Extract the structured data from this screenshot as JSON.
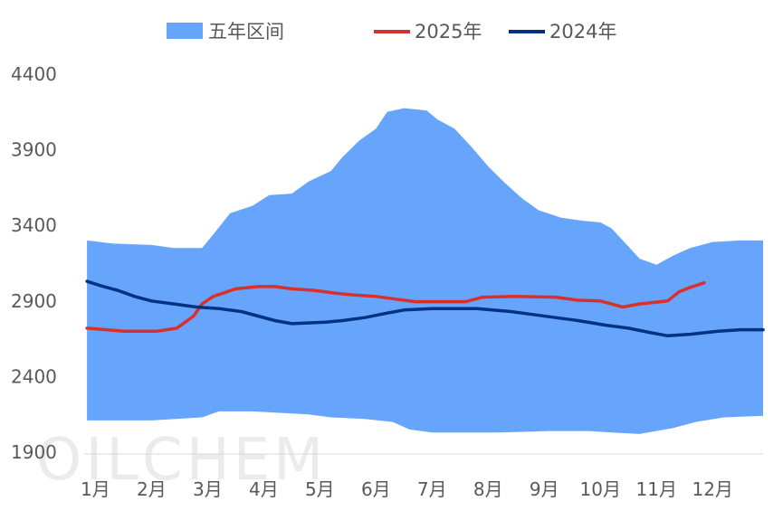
{
  "chart_data": {
    "type": "line",
    "title": "",
    "xlabel": "",
    "ylabel": "",
    "ylim": [
      1900,
      4400
    ],
    "yticks": [
      1900,
      2400,
      2900,
      3400,
      3900,
      4400
    ],
    "months": [
      "1月",
      "2月",
      "3月",
      "4月",
      "5月",
      "6月",
      "7月",
      "8月",
      "9月",
      "10月",
      "11月",
      "12月"
    ],
    "x_range": [
      0.8,
      12.9
    ],
    "legend_position": "top",
    "grid": false,
    "watermark": "OILCHEM",
    "band": {
      "name": "五年区间",
      "color": "#66a5fb",
      "upper": [
        [
          0.85,
          3300
        ],
        [
          1.3,
          3280
        ],
        [
          2.0,
          3270
        ],
        [
          2.4,
          3250
        ],
        [
          2.9,
          3250
        ],
        [
          3.1,
          3340
        ],
        [
          3.4,
          3480
        ],
        [
          3.8,
          3530
        ],
        [
          4.1,
          3600
        ],
        [
          4.5,
          3610
        ],
        [
          4.8,
          3690
        ],
        [
          5.2,
          3760
        ],
        [
          5.4,
          3850
        ],
        [
          5.7,
          3960
        ],
        [
          6.0,
          4040
        ],
        [
          6.2,
          4150
        ],
        [
          6.5,
          4175
        ],
        [
          6.9,
          4160
        ],
        [
          7.1,
          4100
        ],
        [
          7.4,
          4040
        ],
        [
          7.7,
          3920
        ],
        [
          8.0,
          3790
        ],
        [
          8.3,
          3680
        ],
        [
          8.6,
          3580
        ],
        [
          8.9,
          3500
        ],
        [
          9.3,
          3450
        ],
        [
          9.7,
          3430
        ],
        [
          10.0,
          3420
        ],
        [
          10.2,
          3380
        ],
        [
          10.4,
          3300
        ],
        [
          10.7,
          3180
        ],
        [
          11.0,
          3140
        ],
        [
          11.3,
          3200
        ],
        [
          11.6,
          3250
        ],
        [
          12.0,
          3290
        ],
        [
          12.5,
          3300
        ],
        [
          12.9,
          3300
        ]
      ],
      "lower": [
        [
          0.85,
          2110
        ],
        [
          2.0,
          2110
        ],
        [
          2.9,
          2130
        ],
        [
          3.2,
          2170
        ],
        [
          3.8,
          2170
        ],
        [
          4.8,
          2150
        ],
        [
          5.2,
          2130
        ],
        [
          5.8,
          2120
        ],
        [
          6.3,
          2100
        ],
        [
          6.6,
          2050
        ],
        [
          7.0,
          2030
        ],
        [
          8.2,
          2030
        ],
        [
          9.1,
          2040
        ],
        [
          9.8,
          2040
        ],
        [
          10.2,
          2030
        ],
        [
          10.7,
          2020
        ],
        [
          11.3,
          2060
        ],
        [
          11.7,
          2100
        ],
        [
          12.2,
          2130
        ],
        [
          12.9,
          2140
        ]
      ]
    },
    "series": [
      {
        "name": "2025年",
        "color": "#d9302c",
        "values": [
          [
            0.85,
            2720
          ],
          [
            1.2,
            2710
          ],
          [
            1.5,
            2700
          ],
          [
            2.1,
            2700
          ],
          [
            2.45,
            2720
          ],
          [
            2.75,
            2800
          ],
          [
            2.9,
            2880
          ],
          [
            3.1,
            2930
          ],
          [
            3.5,
            2980
          ],
          [
            3.9,
            2995
          ],
          [
            4.2,
            2995
          ],
          [
            4.5,
            2980
          ],
          [
            4.9,
            2970
          ],
          [
            5.3,
            2950
          ],
          [
            5.6,
            2940
          ],
          [
            6.0,
            2930
          ],
          [
            6.3,
            2915
          ],
          [
            6.7,
            2895
          ],
          [
            7.6,
            2895
          ],
          [
            7.9,
            2925
          ],
          [
            8.5,
            2930
          ],
          [
            9.2,
            2925
          ],
          [
            9.6,
            2905
          ],
          [
            10.0,
            2900
          ],
          [
            10.4,
            2860
          ],
          [
            10.7,
            2880
          ],
          [
            11.2,
            2900
          ],
          [
            11.4,
            2960
          ],
          [
            11.6,
            2990
          ],
          [
            11.85,
            3020
          ]
        ]
      },
      {
        "name": "2024年",
        "color": "#003283",
        "values": [
          [
            0.85,
            3030
          ],
          [
            1.1,
            3000
          ],
          [
            1.4,
            2970
          ],
          [
            1.7,
            2930
          ],
          [
            2.0,
            2900
          ],
          [
            2.4,
            2880
          ],
          [
            2.8,
            2860
          ],
          [
            3.2,
            2850
          ],
          [
            3.6,
            2830
          ],
          [
            3.9,
            2800
          ],
          [
            4.2,
            2770
          ],
          [
            4.5,
            2750
          ],
          [
            5.1,
            2760
          ],
          [
            5.4,
            2770
          ],
          [
            5.8,
            2790
          ],
          [
            6.2,
            2820
          ],
          [
            6.5,
            2840
          ],
          [
            7.0,
            2850
          ],
          [
            7.8,
            2850
          ],
          [
            8.4,
            2830
          ],
          [
            8.8,
            2810
          ],
          [
            9.2,
            2790
          ],
          [
            9.6,
            2770
          ],
          [
            10.1,
            2740
          ],
          [
            10.5,
            2720
          ],
          [
            10.9,
            2690
          ],
          [
            11.2,
            2670
          ],
          [
            11.6,
            2680
          ],
          [
            12.1,
            2700
          ],
          [
            12.5,
            2710
          ],
          [
            12.9,
            2710
          ]
        ]
      }
    ]
  }
}
